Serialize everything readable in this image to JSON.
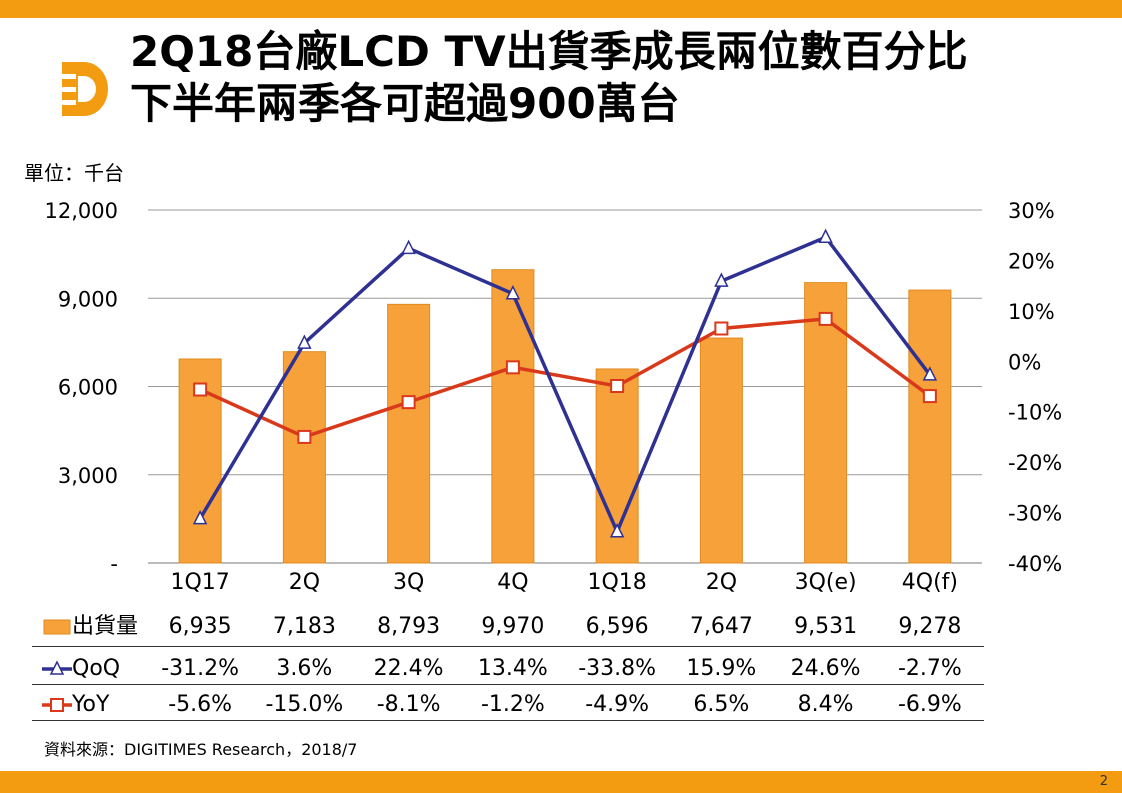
{
  "title_line1": "2Q18台廠LCD TV出貨季成長兩位數百分比",
  "title_line2": "下半年兩季各可超過900萬台",
  "unit_label": "單位：千台",
  "source": "資料來源：DIGITIMES Research，2018/7",
  "page_number": "2",
  "colors": {
    "accent_orange": "#F39C12",
    "bar_orange": "#F7A13B",
    "qoq_blue": "#2E3192",
    "yoy_red": "#D9391A",
    "grid": "#9a9a9a"
  },
  "chart_data": {
    "type": "bar",
    "categories": [
      "1Q17",
      "2Q",
      "3Q",
      "4Q",
      "1Q18",
      "2Q",
      "3Q(e)",
      "4Q(f)"
    ],
    "left_axis": {
      "ticks": [
        "12,000",
        "9,000",
        "6,000",
        "3,000",
        "-"
      ],
      "ylim": [
        0,
        12000
      ]
    },
    "right_axis": {
      "ticks": [
        "30%",
        "20%",
        "10%",
        "0%",
        "-10%",
        "-20%",
        "-30%",
        "-40%"
      ],
      "ylim": [
        -40,
        30
      ]
    },
    "grid": true,
    "series": [
      {
        "name": "出貨量",
        "type": "bar",
        "axis": "left",
        "values": [
          6935,
          7183,
          8793,
          9970,
          6596,
          7647,
          9531,
          9278
        ],
        "labels": [
          "6,935",
          "7,183",
          "8,793",
          "9,970",
          "6,596",
          "7,647",
          "9,531",
          "9,278"
        ]
      },
      {
        "name": "QoQ",
        "type": "line",
        "axis": "right",
        "marker": "triangle",
        "values": [
          -31.2,
          3.6,
          22.4,
          13.4,
          -33.8,
          15.9,
          24.6,
          -2.7
        ],
        "labels": [
          "-31.2%",
          "3.6%",
          "22.4%",
          "13.4%",
          "-33.8%",
          "15.9%",
          "24.6%",
          "-2.7%"
        ]
      },
      {
        "name": "YoY",
        "type": "line",
        "axis": "right",
        "marker": "square",
        "values": [
          -5.6,
          -15.0,
          -8.1,
          -1.2,
          -4.9,
          6.5,
          8.4,
          -6.9
        ],
        "labels": [
          "-5.6%",
          "-15.0%",
          "-8.1%",
          "-1.2%",
          "-4.9%",
          "6.5%",
          "8.4%",
          "-6.9%"
        ]
      }
    ]
  }
}
